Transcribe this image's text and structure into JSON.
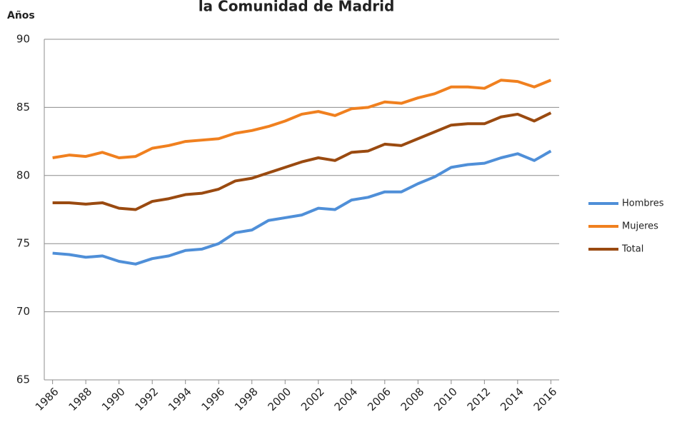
{
  "chart_data": {
    "type": "line",
    "title": "la Comunidad de Madrid",
    "y_label": "Años",
    "x": [
      1986,
      1987,
      1988,
      1989,
      1990,
      1991,
      1992,
      1993,
      1994,
      1995,
      1996,
      1997,
      1998,
      1999,
      2000,
      2001,
      2002,
      2003,
      2004,
      2005,
      2006,
      2007,
      2008,
      2009,
      2010,
      2011,
      2012,
      2013,
      2014,
      2015,
      2016
    ],
    "series": [
      {
        "name": "Hombres",
        "color": "#4f8fd8",
        "values": [
          74.3,
          74.2,
          74.0,
          74.1,
          73.7,
          73.5,
          73.9,
          74.1,
          74.5,
          74.6,
          75.0,
          75.8,
          76.0,
          76.7,
          76.9,
          77.1,
          77.6,
          77.5,
          78.2,
          78.4,
          78.8,
          78.8,
          79.4,
          79.9,
          80.6,
          80.8,
          80.9,
          81.3,
          81.6,
          81.1,
          81.8
        ]
      },
      {
        "name": "Mujeres",
        "color": "#f0801f",
        "values": [
          81.3,
          81.5,
          81.4,
          81.7,
          81.3,
          81.4,
          82.0,
          82.2,
          82.5,
          82.6,
          82.7,
          83.1,
          83.3,
          83.6,
          84.0,
          84.5,
          84.7,
          84.4,
          84.9,
          85.0,
          85.4,
          85.3,
          85.7,
          86.0,
          86.5,
          86.5,
          86.4,
          87.0,
          86.9,
          86.5,
          87.0
        ]
      },
      {
        "name": "Total",
        "color": "#9a4a10",
        "values": [
          78.0,
          78.0,
          77.9,
          78.0,
          77.6,
          77.5,
          78.1,
          78.3,
          78.6,
          78.7,
          79.0,
          79.6,
          79.8,
          80.2,
          80.6,
          81.0,
          81.3,
          81.1,
          81.7,
          81.8,
          82.3,
          82.2,
          82.7,
          83.2,
          83.7,
          83.8,
          83.8,
          84.3,
          84.5,
          84.0,
          84.6
        ]
      }
    ],
    "xlim": [
      1985.5,
      2016.5
    ],
    "xticks": [
      1986,
      1988,
      1990,
      1992,
      1994,
      1996,
      1998,
      2000,
      2002,
      2004,
      2006,
      2008,
      2010,
      2012,
      2014,
      2016
    ],
    "ylim": [
      65,
      90
    ],
    "yticks": [
      65,
      70,
      75,
      80,
      85,
      90
    ],
    "grid": true,
    "legend": "right"
  }
}
